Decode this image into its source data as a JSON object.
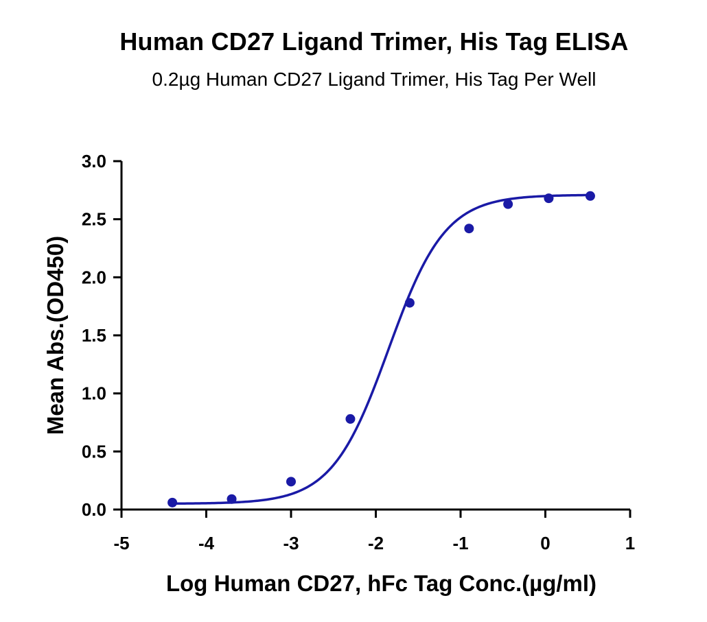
{
  "chart_data": {
    "type": "scatter",
    "title": "Human CD27 Ligand Trimer, His Tag ELISA",
    "subtitle": "0.2µg Human CD27 Ligand Trimer, His Tag Per Well",
    "xlabel": "Log Human CD27, hFc Tag Conc.(µg/ml)",
    "ylabel": "Mean Abs.(OD450)",
    "xlim": [
      -5,
      1
    ],
    "ylim": [
      0,
      3
    ],
    "x_ticks": [
      -5,
      -4,
      -3,
      -2,
      -1,
      0,
      1
    ],
    "y_ticks": [
      0,
      0.5,
      1,
      1.5,
      2,
      2.5,
      3
    ],
    "x_tick_labels": [
      "-5",
      "-4",
      "-3",
      "-2",
      "-1",
      "0",
      "1"
    ],
    "y_tick_labels": [
      "0.0",
      "0.5",
      "1.0",
      "1.5",
      "2.0",
      "2.5",
      "3.0"
    ],
    "grid": false,
    "series": [
      {
        "x": [
          -4.4,
          -3.7,
          -3.0,
          -2.3,
          -1.6,
          -0.9,
          -0.44,
          0.04,
          0.53
        ],
        "y": [
          0.06,
          0.09,
          0.24,
          0.78,
          1.78,
          2.42,
          2.63,
          2.68,
          2.7
        ],
        "color": "#1a1aa6",
        "fit": "four-parameter logistic",
        "fit_params": {
          "bottom": 0.05,
          "top": 2.71,
          "log_ec50": -1.85,
          "hill": 1.3
        }
      }
    ]
  }
}
